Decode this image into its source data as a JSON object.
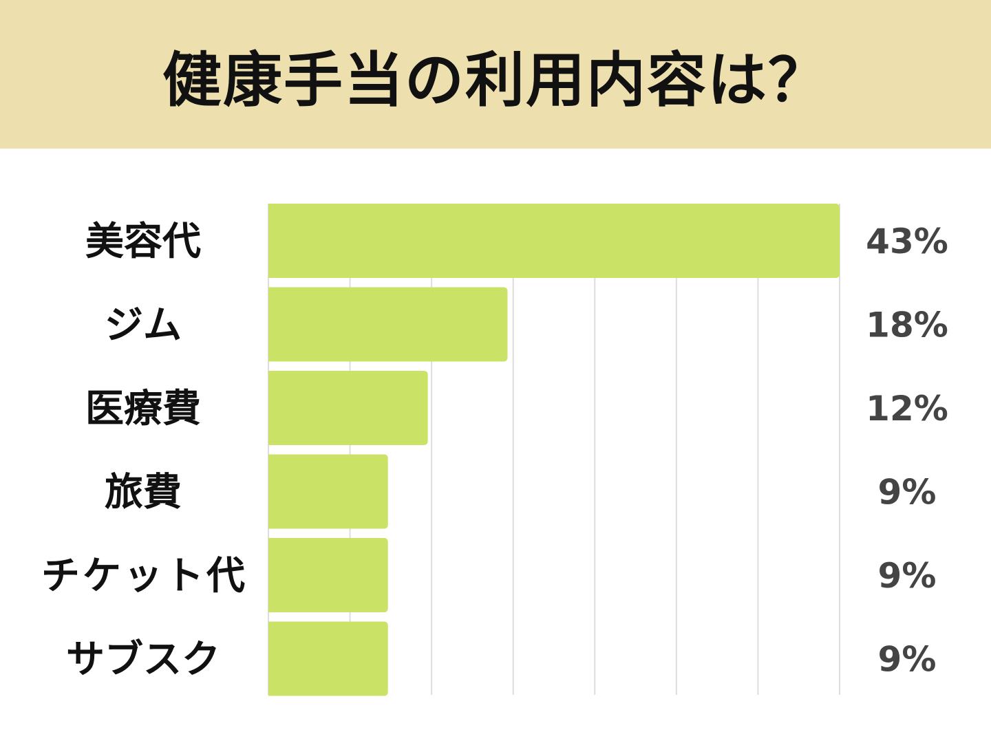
{
  "chart_data": {
    "type": "bar",
    "orientation": "horizontal",
    "title": "健康手当の利用内容は？",
    "categories": [
      "美容代",
      "ジム",
      "医療費",
      "旅費",
      "チケット代",
      "サブスク"
    ],
    "values": [
      43,
      18,
      12,
      9,
      9,
      9
    ],
    "value_labels": [
      "43%",
      "18%",
      "12%",
      "9%",
      "9%",
      "9%"
    ],
    "xlim": [
      0,
      43
    ],
    "grid": true,
    "grid_divisions": 7,
    "colors": {
      "bar": "#cae367",
      "header": "#ede0ae",
      "value_text": "#444444",
      "grid": "#dddddd"
    }
  }
}
